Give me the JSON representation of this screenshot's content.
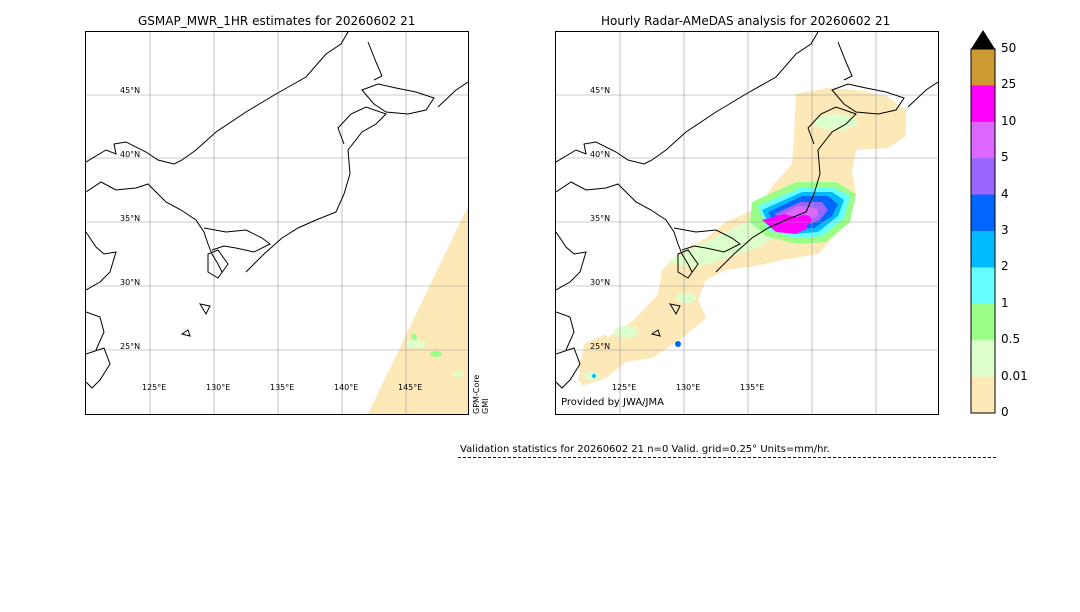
{
  "left_panel": {
    "title": "GSMAP_MWR_1HR estimates for 20260602 21",
    "satellite_label_line1": "GPM-Core",
    "satellite_label_line2": "GMI",
    "lat_labels": [
      "45°N",
      "40°N",
      "35°N",
      "30°N",
      "25°N"
    ],
    "lon_labels": [
      "125°E",
      "130°E",
      "135°E",
      "140°E",
      "145°E"
    ]
  },
  "right_panel": {
    "title": "Hourly Radar-AMeDAS analysis for 20260602 21",
    "credit": "Provided by JWA/JMA",
    "lat_labels": [
      "45°N",
      "40°N",
      "35°N",
      "30°N",
      "25°N"
    ],
    "lon_labels": [
      "125°E",
      "130°E",
      "135°E"
    ]
  },
  "colorbar": {
    "labels": [
      "50",
      "25",
      "10",
      "5",
      "4",
      "3",
      "2",
      "1",
      "0.5",
      "0.01",
      "0"
    ],
    "colors": [
      "#cc9933",
      "#ff00ff",
      "#dd66ff",
      "#9966ff",
      "#0066ff",
      "#00bbff",
      "#66ffff",
      "#99ff88",
      "#ddffcc",
      "#fde8b8"
    ],
    "extend_color": "#000000"
  },
  "stats": {
    "text": "Validation statistics for 20260602 21  n=0 Valid. grid=0.25° Units=mm/hr."
  }
}
